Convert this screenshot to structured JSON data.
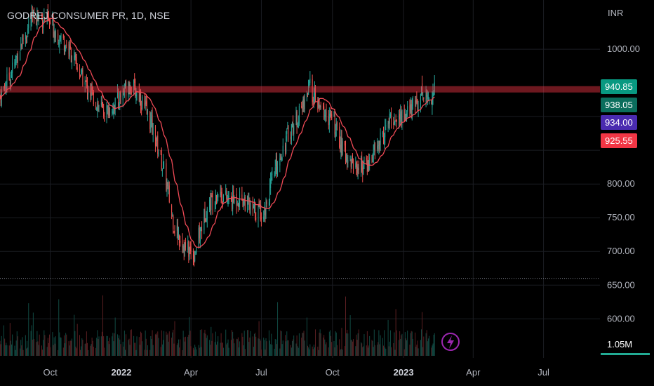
{
  "header": {
    "title": "GODREJ CONSUMER PR, 1D, NSE",
    "currency": "INR"
  },
  "price_badges": [
    {
      "label": "940.85",
      "value": 940.85,
      "color": "#089981"
    },
    {
      "label": "938.05",
      "value": 938.05,
      "color": "#0b6e5d"
    },
    {
      "label": "934.00",
      "value": 934.0,
      "color": "#4a2bb0"
    },
    {
      "label": "925.55",
      "value": 925.55,
      "color": "#f23645"
    }
  ],
  "volume_badge": {
    "label": "1.05M",
    "color": "#22ab94"
  },
  "colors": {
    "up": "#26a69a",
    "down": "#ef5350",
    "ma": "#f04a56",
    "resistance": "#f23645",
    "flash_icon": "#9c27b0"
  },
  "chart_data": {
    "type": "candlestick",
    "title": "GODREJ CONSUMER PR, 1D, NSE",
    "y_unit": "INR",
    "y_ticks": [
      1000,
      800,
      750,
      700,
      650,
      600
    ],
    "y_tick_labels": [
      "1000.00",
      "800.00",
      "750.00",
      "700.00",
      "650.00",
      "600.00"
    ],
    "ylim": [
      542,
      1073
    ],
    "x_ticks": [
      {
        "label": "Oct",
        "date": "2021-10-01",
        "bold": false
      },
      {
        "label": "2022",
        "date": "2022-01-01",
        "bold": true
      },
      {
        "label": "Apr",
        "date": "2022-04-01",
        "bold": false
      },
      {
        "label": "Jul",
        "date": "2022-07-01",
        "bold": false
      },
      {
        "label": "Oct",
        "date": "2022-10-01",
        "bold": false
      },
      {
        "label": "2023",
        "date": "2023-01-01",
        "bold": true
      },
      {
        "label": "Apr",
        "date": "2023-04-01",
        "bold": false
      },
      {
        "label": "Jul",
        "date": "2023-07-01",
        "bold": false
      }
    ],
    "xlim": [
      "2021-07-28",
      "2023-09-12"
    ],
    "resistance_level": 941,
    "support_level": 660,
    "price_path": [
      {
        "date": "2021-07-28",
        "close": 930
      },
      {
        "date": "2021-08-10",
        "close": 960
      },
      {
        "date": "2021-08-25",
        "close": 1010
      },
      {
        "date": "2021-09-10",
        "close": 1050
      },
      {
        "date": "2021-09-25",
        "close": 1045
      },
      {
        "date": "2021-10-10",
        "close": 1025
      },
      {
        "date": "2021-10-25",
        "close": 1000
      },
      {
        "date": "2021-11-10",
        "close": 960
      },
      {
        "date": "2021-11-25",
        "close": 930
      },
      {
        "date": "2021-12-10",
        "close": 905
      },
      {
        "date": "2021-12-25",
        "close": 920
      },
      {
        "date": "2022-01-10",
        "close": 950
      },
      {
        "date": "2022-01-25",
        "close": 930
      },
      {
        "date": "2022-02-10",
        "close": 885
      },
      {
        "date": "2022-02-25",
        "close": 820
      },
      {
        "date": "2022-03-10",
        "close": 740
      },
      {
        "date": "2022-03-25",
        "close": 705
      },
      {
        "date": "2022-04-05",
        "close": 695
      },
      {
        "date": "2022-04-20",
        "close": 760
      },
      {
        "date": "2022-05-05",
        "close": 790
      },
      {
        "date": "2022-05-20",
        "close": 775
      },
      {
        "date": "2022-06-05",
        "close": 780
      },
      {
        "date": "2022-06-20",
        "close": 760
      },
      {
        "date": "2022-07-05",
        "close": 760
      },
      {
        "date": "2022-07-20",
        "close": 825
      },
      {
        "date": "2022-08-05",
        "close": 875
      },
      {
        "date": "2022-08-20",
        "close": 905
      },
      {
        "date": "2022-09-01",
        "close": 945
      },
      {
        "date": "2022-09-15",
        "close": 910
      },
      {
        "date": "2022-10-01",
        "close": 895
      },
      {
        "date": "2022-10-15",
        "close": 848
      },
      {
        "date": "2022-11-01",
        "close": 825
      },
      {
        "date": "2022-11-15",
        "close": 828
      },
      {
        "date": "2022-12-01",
        "close": 862
      },
      {
        "date": "2022-12-15",
        "close": 895
      },
      {
        "date": "2023-01-01",
        "close": 900
      },
      {
        "date": "2023-01-15",
        "close": 915
      },
      {
        "date": "2023-01-25",
        "close": 938
      },
      {
        "date": "2023-02-03",
        "close": 925
      },
      {
        "date": "2023-02-10",
        "close": 940.85
      }
    ]
  }
}
